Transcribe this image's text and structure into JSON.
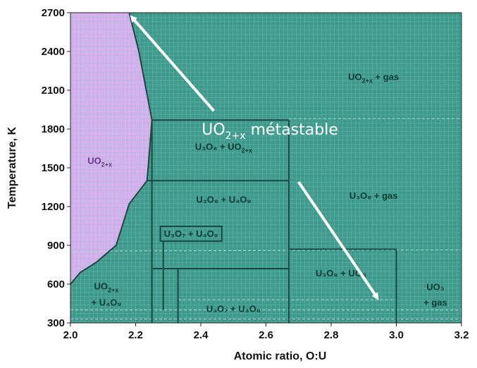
{
  "chart_data": {
    "type": "phase-diagram",
    "xlabel": "Atomic ratio, O:U",
    "ylabel": "Temperature, K",
    "xlim": [
      2.0,
      3.2
    ],
    "ylim": [
      300,
      2700
    ],
    "x_ticks": [
      "2.0",
      "2.2",
      "2.4",
      "2.6",
      "2.8",
      "3.0",
      "3.2"
    ],
    "y_ticks": [
      "300",
      "600",
      "900",
      "1200",
      "1500",
      "1800",
      "2100",
      "2400",
      "2700"
    ],
    "grid": true,
    "colors": {
      "purple_region": "#d8b0f0",
      "teal_region": "#3e9a8c",
      "grid": "#7cc4b8",
      "boundary": "#1b4a44",
      "arrow": "#ffffff"
    },
    "phase_boundaries": [
      {
        "name": "uo2x-upper",
        "points": [
          [
            2.18,
            2700
          ],
          [
            2.21,
            2400
          ],
          [
            2.25,
            1870
          ],
          [
            2.24,
            1550
          ],
          [
            2.235,
            1400
          ]
        ]
      },
      {
        "name": "uo2x-lower",
        "points": [
          [
            2.235,
            1400
          ],
          [
            2.18,
            1220
          ],
          [
            2.14,
            900
          ],
          [
            2.08,
            770
          ],
          [
            2.03,
            690
          ],
          [
            2.0,
            600
          ]
        ]
      },
      {
        "name": "t-1870",
        "points": [
          [
            2.25,
            1870
          ],
          [
            2.67,
            1870
          ]
        ]
      },
      {
        "name": "t-1400",
        "points": [
          [
            2.235,
            1400
          ],
          [
            2.67,
            1400
          ]
        ]
      },
      {
        "name": "x-2.25",
        "points": [
          [
            2.25,
            1870
          ],
          [
            2.25,
            300
          ]
        ]
      },
      {
        "name": "x-2.67",
        "points": [
          [
            2.67,
            1870
          ],
          [
            2.67,
            300
          ]
        ]
      },
      {
        "name": "t-720",
        "points": [
          [
            2.25,
            720
          ],
          [
            2.67,
            720
          ]
        ]
      },
      {
        "name": "x-2.33",
        "points": [
          [
            2.33,
            720
          ],
          [
            2.33,
            300
          ]
        ]
      },
      {
        "name": "uo3-box-top",
        "points": [
          [
            2.67,
            870
          ],
          [
            3.0,
            870
          ]
        ]
      },
      {
        "name": "uo3-box-right",
        "points": [
          [
            3.0,
            870
          ],
          [
            3.0,
            300
          ]
        ]
      }
    ],
    "dashed_lines": [
      {
        "name": "dash-1880",
        "points": [
          [
            2.67,
            1880
          ],
          [
            3.2,
            1880
          ]
        ]
      },
      {
        "name": "dash-870",
        "points": [
          [
            2.0,
            855
          ],
          [
            3.2,
            865
          ]
        ]
      },
      {
        "name": "dash-480",
        "points": [
          [
            2.33,
            480
          ],
          [
            3.0,
            480
          ]
        ]
      },
      {
        "name": "dash-400",
        "points": [
          [
            2.0,
            400
          ],
          [
            3.2,
            400
          ]
        ]
      },
      {
        "name": "dash-300",
        "points": [
          [
            2.0,
            330
          ],
          [
            3.2,
            330
          ]
        ]
      }
    ],
    "regions": [
      {
        "name": "uo2x",
        "x": 2.09,
        "y": 1530,
        "label": "UO",
        "sub": "2+x",
        "purple": true
      },
      {
        "name": "uo2x-gas",
        "x": 2.93,
        "y": 2180,
        "label": "UO",
        "sub": "2+x",
        "rest": " + gas"
      },
      {
        "name": "u3o8-uo2x",
        "x": 2.47,
        "y": 1640,
        "label": "U₃O₈ + UO",
        "sub": "2+x"
      },
      {
        "name": "u3o8-gas",
        "x": 2.93,
        "y": 1260,
        "label": "U₃O₈ + gas"
      },
      {
        "name": "u3o8-u4o9",
        "x": 2.47,
        "y": 1230,
        "label": "U₃O₈ + U₄O₉"
      },
      {
        "name": "u3o7-u4o9",
        "x": 2.37,
        "y": 965,
        "label": "U₃O₇ + U₄O₉",
        "boxed": true
      },
      {
        "name": "uo2x-u4o9-a",
        "x": 2.11,
        "y": 560,
        "label": "UO",
        "sub": "2+x"
      },
      {
        "name": "uo2x-u4o9-b",
        "x": 2.11,
        "y": 435,
        "label": "+ U₄O₉"
      },
      {
        "name": "u3o8-uo3",
        "x": 2.83,
        "y": 660,
        "label": "U₃O₈ + UO₃"
      },
      {
        "name": "u3o7-u3o8",
        "x": 2.5,
        "y": 385,
        "label": "U₃O₇ + U₃O₈"
      },
      {
        "name": "uo3-a",
        "x": 3.12,
        "y": 555,
        "label": "UO₃"
      },
      {
        "name": "uo3-b",
        "x": 3.12,
        "y": 435,
        "label": "+ gas"
      }
    ],
    "annotation": {
      "text": "UO",
      "sub": "2+x",
      "rest": " métastable",
      "x": 2.42,
      "y": 1800
    },
    "arrows": [
      {
        "name": "arrow-up",
        "from": [
          2.44,
          1940
        ],
        "to": [
          2.19,
          2660
        ]
      },
      {
        "name": "arrow-down",
        "from": [
          2.7,
          1390
        ],
        "to": [
          2.94,
          500
        ]
      }
    ]
  }
}
